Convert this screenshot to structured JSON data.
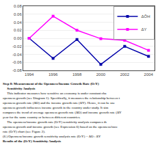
{
  "chart_data": {
    "type": "line",
    "x": [
      1994,
      1996,
      1998,
      2000,
      2002,
      2004
    ],
    "series": [
      {
        "name": "ΔŌH",
        "color": "#0000AA",
        "values": [
          0.0,
          -0.05,
          -0.003,
          -0.065,
          -0.02,
          -0.045
        ],
        "marker": "square",
        "line_style": "solid"
      },
      {
        "name": "ΔY",
        "color": "#FF00FF",
        "values": [
          0.0,
          0.055,
          0.02,
          -0.001,
          -0.005,
          -0.03
        ],
        "marker": "square",
        "line_style": "solid"
      }
    ],
    "xlim": [
      1993.5,
      2004.5
    ],
    "xticks": [
      1994,
      1996,
      1998,
      2000,
      2002,
      2004
    ],
    "ylim": [
      -0.08,
      0.08
    ],
    "yticks": [
      -0.08,
      -0.06,
      -0.04,
      -0.02,
      {
        "value": 0,
        "label": "0.00"
      },
      0.02,
      0.04,
      0.06,
      0.08
    ],
    "grid": "y",
    "legend": "upper right",
    "annotations": [
      "Step 8: Measurement of the Openness/Income Growth Rate (O:Y)",
      "     Sensitivity Analysis",
      "     This indicator measures how sensitive an economy is under constant cha",
      "openness growth (see Diagram 1). Specifically, it measures the relationship between t",
      "openness growth rate (ΔŌ) and the income growth rate (ΔY). Hence, it can be use",
      "openness growth influences income growth in the country under study. It sim",
      "compares the trend of average openness growth rate (ΔŌ) and income growth rate (ΔY",
      "year for the same country or between different countries.",
      "     The openness/income growth rate (O:Y) sensitivity analysis compares th",
      "openness growth and income growth (see Expression 6) based on the openness/inco",
      "rate (O:Y) chart (see Figure 2).",
      "(6.) Openness/income growth sensitivity analysis rate (O:Y) = ΔŌ : ΔY",
      "Results of the (O:Y) Sensitivity Analysis"
    ]
  }
}
